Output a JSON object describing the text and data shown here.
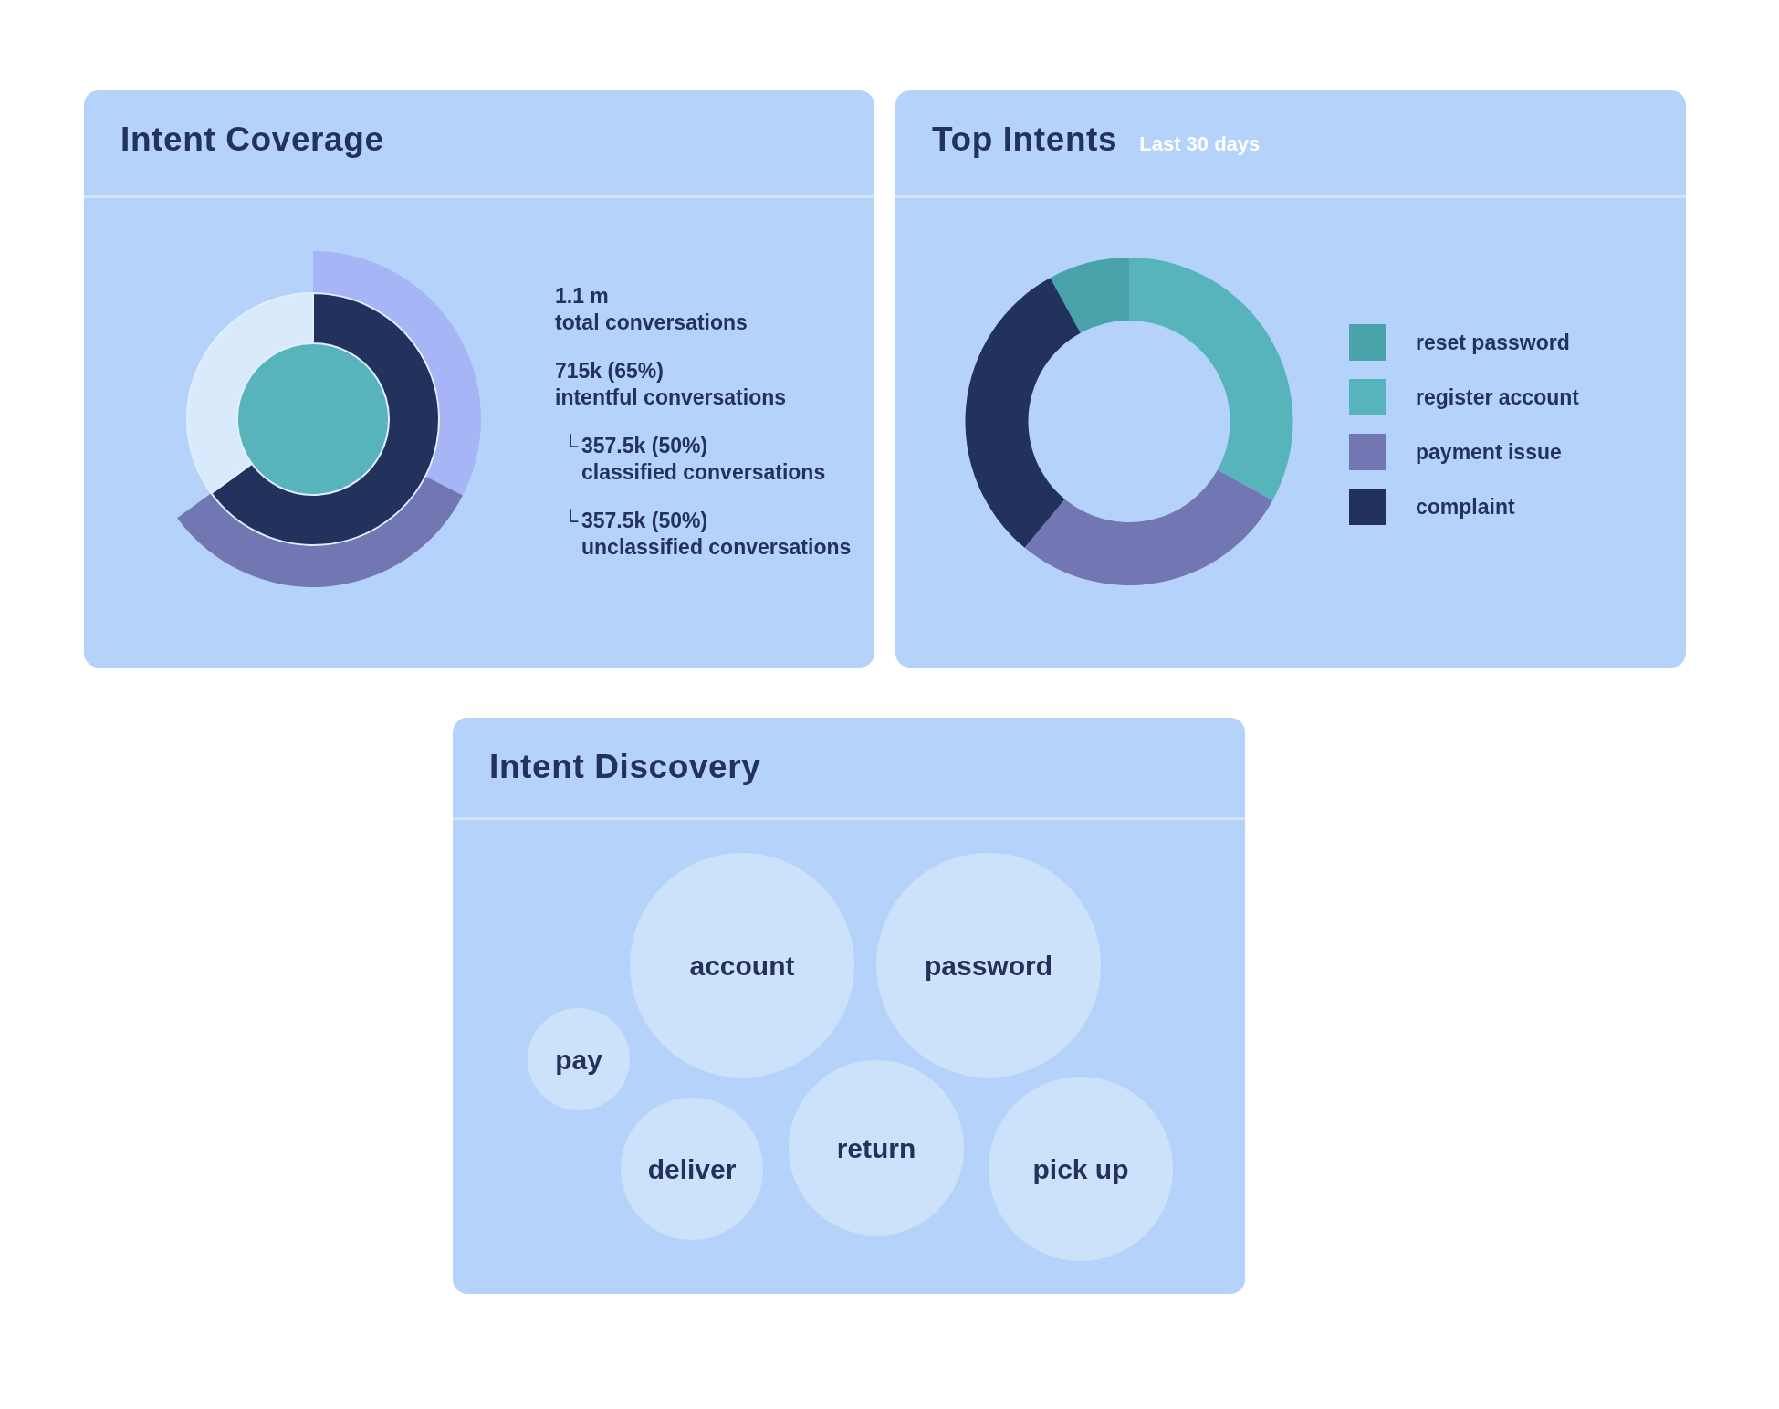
{
  "chart_data": [
    {
      "type": "donut",
      "title": "Intent Coverage",
      "series": [
        {
          "type": "pie",
          "values": [
            100
          ],
          "colors": [
            "#57b4bd"
          ]
        },
        {
          "values": [
            65,
            35
          ],
          "colors": [
            "#22325c",
            "#d8eafc"
          ]
        },
        {
          "values": [
            50,
            50
          ],
          "colors": [
            "#a6b5f5",
            "#7276b3"
          ]
        }
      ],
      "annotations": [
        "1.1 m\ntotal conversations",
        "715k (65%)\nintentful conversations",
        "└ 357.5k (50%)\nclassified conversations",
        "└ 357.5k (50%)\nunclassified conversations"
      ]
    },
    {
      "type": "donut",
      "title": "Top Intents",
      "subtitle": "Last 30 days",
      "categories": [
        "reset password",
        "register account",
        "payment issue",
        "complaint"
      ],
      "values": [
        8,
        33,
        28,
        31
      ],
      "colors": [
        "#4aa3ab",
        "#57b4bd",
        "#7276b3",
        "#22325c"
      ],
      "legend": "right"
    },
    {
      "type": "other",
      "title": "Intent Discovery",
      "categories": [
        "account",
        "password",
        "pay",
        "return",
        "deliver",
        "pick up"
      ],
      "color": "#cce2fa"
    }
  ]
}
